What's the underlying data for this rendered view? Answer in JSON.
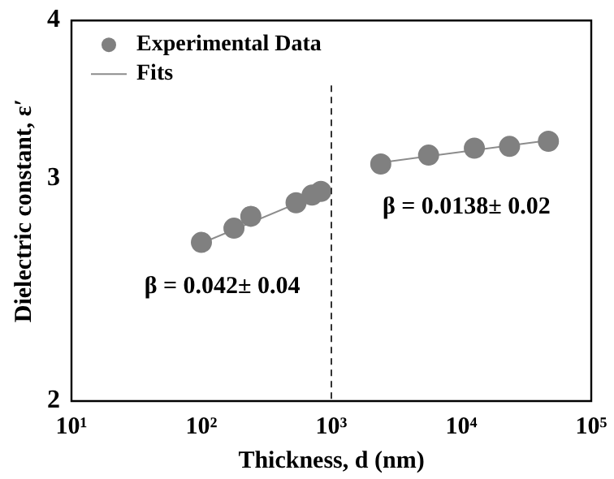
{
  "chart_data": {
    "type": "scatter",
    "xlabel": "Thickness, d (nm)",
    "ylabel": "Dielectric constant, ε′",
    "log": "xy",
    "xlim": [
      10,
      100000
    ],
    "xticks": [
      {
        "value": 10,
        "label": "10¹"
      },
      {
        "value": 100,
        "label": "10²"
      },
      {
        "value": 1000,
        "label": "10³"
      },
      {
        "value": 10000,
        "label": "10⁴"
      },
      {
        "value": 100000,
        "label": "10⁵"
      }
    ],
    "ylim": [
      2,
      4
    ],
    "yticks": [
      2,
      3,
      4
    ],
    "grid": false,
    "legend": "top left",
    "series": [
      {
        "name": "Experimental Data",
        "marker": "circle",
        "color": "#808080",
        "x": [
          100,
          178,
          240,
          535,
          710,
          830,
          2400,
          5600,
          12600,
          23500,
          46800
        ],
        "values": [
          2.67,
          2.74,
          2.8,
          2.87,
          2.91,
          2.93,
          3.08,
          3.13,
          3.17,
          3.18,
          3.21
        ]
      },
      {
        "name": "Fits",
        "type": "line",
        "color": "#8c8c8c",
        "x": [
          95,
          900
        ],
        "values": [
          2.66,
          2.93
        ]
      },
      {
        "type": "line",
        "color": "#8c8c8c",
        "x": [
          2000,
          52000
        ],
        "values": [
          3.08,
          3.22
        ]
      }
    ],
    "ref_lines": [
      {
        "axis": "x",
        "value": 1000,
        "color": "#333333",
        "line_style": "dashed"
      }
    ],
    "annotations": [
      "β = 0.042± 0.04",
      "β = 0.0138± 0.02"
    ]
  }
}
